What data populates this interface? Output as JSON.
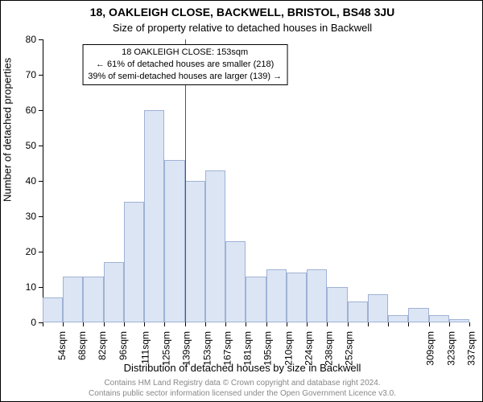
{
  "title": "18, OAKLEIGH CLOSE, BACKWELL, BRISTOL, BS48 3JU",
  "subtitle": "Size of property relative to detached houses in Backwell",
  "ylabel": "Number of detached properties",
  "xlabel": "Distribution of detached houses by size in Backwell",
  "footer_line1": "Contains HM Land Registry data © Crown copyright and database right 2024.",
  "footer_line2": "Contains public sector information licensed under the Open Government Licence v3.0.",
  "chart": {
    "type": "histogram",
    "ylim": [
      0,
      80
    ],
    "yticks": [
      0,
      10,
      20,
      30,
      40,
      50,
      60,
      70,
      80
    ],
    "xticks": [
      "54sqm",
      "68sqm",
      "82sqm",
      "96sqm",
      "111sqm",
      "125sqm",
      "139sqm",
      "153sqm",
      "167sqm",
      "181sqm",
      "195sqm",
      "210sqm",
      "224sqm",
      "238sqm",
      "252sqm",
      "",
      "",
      "",
      "309sqm",
      "323sqm",
      "337sqm"
    ],
    "values": [
      7,
      13,
      13,
      17,
      34,
      60,
      46,
      40,
      43,
      23,
      13,
      15,
      14,
      15,
      10,
      6,
      8,
      2,
      4,
      2,
      1
    ],
    "bar_fill": "#dce5f4",
    "bar_border": "#9fb2d4",
    "background_color": "#ffffff",
    "axis_color": "#000000",
    "refline_x_index": 7,
    "refline_color": "#d22020",
    "annotation": {
      "line1": "18 OAKLEIGH CLOSE: 153sqm",
      "line2": "← 61% of detached houses are smaller (218)",
      "line3": "39% of semi-detached houses are larger (139) →"
    },
    "tick_fontsize": 12,
    "label_fontsize": 13,
    "title_fontsize": 14
  }
}
